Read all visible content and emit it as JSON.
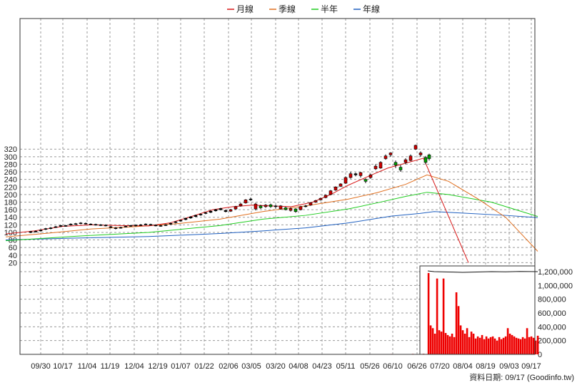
{
  "chart_data": {
    "type": "candlestick",
    "legend": [
      {
        "name": "月線",
        "color": "#d81818"
      },
      {
        "name": "季線",
        "color": "#e07020"
      },
      {
        "name": "半年",
        "color": "#20cc20"
      },
      {
        "name": "年線",
        "color": "#2060c0"
      }
    ],
    "x_labels": [
      "09/30",
      "10/17",
      "11/04",
      "11/19",
      "12/04",
      "12/19",
      "01/07",
      "01/22",
      "02/06",
      "03/05",
      "03/20",
      "04/08",
      "04/23",
      "05/11",
      "05/26",
      "06/10",
      "06/26",
      "07/20",
      "08/04",
      "08/19",
      "09/03",
      "09/17"
    ],
    "price_axis": {
      "ticks": [
        20,
        40,
        60,
        80,
        100,
        120,
        140,
        160,
        180,
        200,
        220,
        240,
        260,
        280,
        300,
        320
      ],
      "min": 0,
      "max": 330
    },
    "volume_axis": {
      "ticks": [
        "0",
        "200,000",
        "400,000",
        "600,000",
        "800,000",
        "1,000,000",
        "1,200,000"
      ],
      "min": 0,
      "max": 1200000
    },
    "ma_month": [
      [
        0,
        96
      ],
      [
        40,
        104
      ],
      [
        80,
        116
      ],
      [
        120,
        120
      ],
      [
        160,
        118
      ],
      [
        200,
        117
      ],
      [
        230,
        125
      ],
      [
        260,
        142
      ],
      [
        290,
        160
      ],
      [
        318,
        168
      ],
      [
        345,
        172
      ],
      [
        370,
        170
      ],
      [
        400,
        168
      ],
      [
        430,
        180
      ],
      [
        455,
        200
      ],
      [
        480,
        225
      ],
      [
        510,
        250
      ],
      [
        535,
        270
      ],
      [
        560,
        283
      ],
      [
        585,
        296
      ],
      [
        648,
        20
      ]
    ],
    "ma_season": [
      [
        0,
        88
      ],
      [
        60,
        98
      ],
      [
        120,
        109
      ],
      [
        180,
        115
      ],
      [
        240,
        123
      ],
      [
        300,
        135
      ],
      [
        360,
        155
      ],
      [
        420,
        170
      ],
      [
        480,
        188
      ],
      [
        520,
        205
      ],
      [
        560,
        227
      ],
      [
        590,
        252
      ],
      [
        620,
        235
      ],
      [
        660,
        190
      ],
      [
        700,
        140
      ],
      [
        745,
        50
      ]
    ],
    "ma_half": [
      [
        0,
        78
      ],
      [
        100,
        90
      ],
      [
        200,
        100
      ],
      [
        300,
        118
      ],
      [
        360,
        135
      ],
      [
        420,
        145
      ],
      [
        480,
        162
      ],
      [
        520,
        178
      ],
      [
        560,
        195
      ],
      [
        590,
        206
      ],
      [
        620,
        200
      ],
      [
        680,
        180
      ],
      [
        745,
        142
      ]
    ],
    "ma_year": [
      [
        0,
        80
      ],
      [
        100,
        85
      ],
      [
        200,
        89
      ],
      [
        300,
        97
      ],
      [
        360,
        104
      ],
      [
        420,
        112
      ],
      [
        480,
        125
      ],
      [
        540,
        143
      ],
      [
        580,
        150
      ],
      [
        600,
        155
      ],
      [
        640,
        151
      ],
      [
        700,
        145
      ],
      [
        745,
        139
      ]
    ],
    "candles": [
      {
        "x": 35,
        "o": 100,
        "c": 102,
        "h": 104,
        "l": 98
      },
      {
        "x": 42,
        "o": 102,
        "c": 103,
        "h": 105,
        "l": 100
      },
      {
        "x": 49,
        "o": 104,
        "c": 106,
        "h": 108,
        "l": 102
      },
      {
        "x": 56,
        "o": 108,
        "c": 110,
        "h": 112,
        "l": 106
      },
      {
        "x": 63,
        "o": 110,
        "c": 112,
        "h": 114,
        "l": 108
      },
      {
        "x": 70,
        "o": 114,
        "c": 115,
        "h": 117,
        "l": 112
      },
      {
        "x": 77,
        "o": 116,
        "c": 118,
        "h": 120,
        "l": 114
      },
      {
        "x": 84,
        "o": 118,
        "c": 117,
        "h": 120,
        "l": 115
      },
      {
        "x": 91,
        "o": 120,
        "c": 122,
        "h": 124,
        "l": 118
      },
      {
        "x": 98,
        "o": 122,
        "c": 123,
        "h": 125,
        "l": 120
      },
      {
        "x": 105,
        "o": 124,
        "c": 125,
        "h": 127,
        "l": 122
      },
      {
        "x": 112,
        "o": 124,
        "c": 123,
        "h": 126,
        "l": 121
      },
      {
        "x": 119,
        "o": 122,
        "c": 121,
        "h": 124,
        "l": 119
      },
      {
        "x": 126,
        "o": 120,
        "c": 121,
        "h": 123,
        "l": 118
      },
      {
        "x": 133,
        "o": 120,
        "c": 119,
        "h": 122,
        "l": 117
      },
      {
        "x": 140,
        "o": 118,
        "c": 119,
        "h": 121,
        "l": 116
      },
      {
        "x": 147,
        "o": 115,
        "c": 113,
        "h": 117,
        "l": 111
      },
      {
        "x": 154,
        "o": 112,
        "c": 110,
        "h": 114,
        "l": 108
      },
      {
        "x": 161,
        "o": 112,
        "c": 113,
        "h": 115,
        "l": 110
      },
      {
        "x": 168,
        "o": 115,
        "c": 116,
        "h": 118,
        "l": 113
      },
      {
        "x": 175,
        "o": 117,
        "c": 118,
        "h": 120,
        "l": 115
      },
      {
        "x": 182,
        "o": 118,
        "c": 119,
        "h": 121,
        "l": 116
      },
      {
        "x": 189,
        "o": 119,
        "c": 120,
        "h": 122,
        "l": 117
      },
      {
        "x": 196,
        "o": 122,
        "c": 121,
        "h": 124,
        "l": 119
      },
      {
        "x": 203,
        "o": 120,
        "c": 121,
        "h": 123,
        "l": 118
      },
      {
        "x": 210,
        "o": 118,
        "c": 119,
        "h": 121,
        "l": 116
      },
      {
        "x": 217,
        "o": 117,
        "c": 118,
        "h": 120,
        "l": 115
      },
      {
        "x": 224,
        "o": 119,
        "c": 120,
        "h": 122,
        "l": 117
      },
      {
        "x": 231,
        "o": 122,
        "c": 124,
        "h": 126,
        "l": 120
      },
      {
        "x": 238,
        "o": 126,
        "c": 128,
        "h": 130,
        "l": 124
      },
      {
        "x": 245,
        "o": 130,
        "c": 132,
        "h": 134,
        "l": 128
      },
      {
        "x": 252,
        "o": 134,
        "c": 137,
        "h": 139,
        "l": 132
      },
      {
        "x": 259,
        "o": 138,
        "c": 141,
        "h": 143,
        "l": 136
      },
      {
        "x": 266,
        "o": 142,
        "c": 145,
        "h": 147,
        "l": 140
      },
      {
        "x": 273,
        "o": 146,
        "c": 148,
        "h": 150,
        "l": 144
      },
      {
        "x": 280,
        "o": 150,
        "c": 152,
        "h": 154,
        "l": 148
      },
      {
        "x": 287,
        "o": 153,
        "c": 156,
        "h": 158,
        "l": 151
      },
      {
        "x": 294,
        "o": 157,
        "c": 160,
        "h": 162,
        "l": 155
      },
      {
        "x": 301,
        "o": 160,
        "c": 163,
        "h": 165,
        "l": 158
      },
      {
        "x": 308,
        "o": 158,
        "c": 155,
        "h": 160,
        "l": 153
      },
      {
        "x": 315,
        "o": 156,
        "c": 160,
        "h": 162,
        "l": 154
      },
      {
        "x": 322,
        "o": 162,
        "c": 168,
        "h": 170,
        "l": 160
      },
      {
        "x": 329,
        "o": 170,
        "c": 175,
        "h": 178,
        "l": 168
      },
      {
        "x": 336,
        "o": 178,
        "c": 186,
        "h": 188,
        "l": 176
      },
      {
        "x": 343,
        "o": 188,
        "c": 186,
        "h": 192,
        "l": 183
      },
      {
        "x": 350,
        "o": 162,
        "c": 175,
        "h": 178,
        "l": 158
      },
      {
        "x": 357,
        "o": 170,
        "c": 165,
        "h": 173,
        "l": 162
      },
      {
        "x": 364,
        "o": 168,
        "c": 172,
        "h": 175,
        "l": 165
      },
      {
        "x": 371,
        "o": 173,
        "c": 168,
        "h": 176,
        "l": 165
      },
      {
        "x": 378,
        "o": 168,
        "c": 170,
        "h": 173,
        "l": 163
      },
      {
        "x": 385,
        "o": 162,
        "c": 170,
        "h": 172,
        "l": 160
      },
      {
        "x": 392,
        "o": 165,
        "c": 160,
        "h": 168,
        "l": 158
      },
      {
        "x": 399,
        "o": 158,
        "c": 163,
        "h": 166,
        "l": 155
      },
      {
        "x": 406,
        "o": 162,
        "c": 155,
        "h": 164,
        "l": 152
      },
      {
        "x": 413,
        "o": 160,
        "c": 168,
        "h": 170,
        "l": 158
      },
      {
        "x": 420,
        "o": 168,
        "c": 170,
        "h": 173,
        "l": 166
      },
      {
        "x": 427,
        "o": 172,
        "c": 178,
        "h": 180,
        "l": 170
      },
      {
        "x": 434,
        "o": 180,
        "c": 184,
        "h": 186,
        "l": 178
      },
      {
        "x": 441,
        "o": 186,
        "c": 190,
        "h": 192,
        "l": 184
      },
      {
        "x": 448,
        "o": 192,
        "c": 198,
        "h": 200,
        "l": 190
      },
      {
        "x": 455,
        "o": 200,
        "c": 210,
        "h": 212,
        "l": 198
      },
      {
        "x": 462,
        "o": 212,
        "c": 220,
        "h": 222,
        "l": 210
      },
      {
        "x": 469,
        "o": 222,
        "c": 228,
        "h": 230,
        "l": 220
      },
      {
        "x": 476,
        "o": 230,
        "c": 245,
        "h": 248,
        "l": 228
      },
      {
        "x": 483,
        "o": 245,
        "c": 255,
        "h": 260,
        "l": 242
      },
      {
        "x": 490,
        "o": 255,
        "c": 252,
        "h": 258,
        "l": 248
      },
      {
        "x": 497,
        "o": 250,
        "c": 258,
        "h": 260,
        "l": 245
      },
      {
        "x": 504,
        "o": 240,
        "c": 235,
        "h": 243,
        "l": 230
      },
      {
        "x": 511,
        "o": 245,
        "c": 252,
        "h": 255,
        "l": 242
      },
      {
        "x": 518,
        "o": 268,
        "c": 275,
        "h": 280,
        "l": 265
      },
      {
        "x": 525,
        "o": 270,
        "c": 285,
        "h": 288,
        "l": 268
      },
      {
        "x": 532,
        "o": 295,
        "c": 302,
        "h": 306,
        "l": 292
      },
      {
        "x": 539,
        "o": 305,
        "c": 310,
        "h": 312,
        "l": 300
      },
      {
        "x": 546,
        "o": 285,
        "c": 278,
        "h": 290,
        "l": 270
      },
      {
        "x": 553,
        "o": 272,
        "c": 265,
        "h": 278,
        "l": 260
      },
      {
        "x": 560,
        "o": 285,
        "c": 292,
        "h": 296,
        "l": 280
      },
      {
        "x": 567,
        "o": 290,
        "c": 302,
        "h": 306,
        "l": 288
      },
      {
        "x": 574,
        "o": 320,
        "c": 330,
        "h": 332,
        "l": 318
      },
      {
        "x": 581,
        "o": 305,
        "c": 310,
        "h": 314,
        "l": 300
      },
      {
        "x": 588,
        "o": 298,
        "c": 285,
        "h": 302,
        "l": 280
      },
      {
        "x": 593,
        "o": 305,
        "c": 295,
        "h": 308,
        "l": 290
      }
    ],
    "volume": [
      {
        "x": 30,
        "v": 1000
      },
      {
        "x": 60,
        "v": 1200
      },
      {
        "x": 90,
        "v": 800
      },
      {
        "x": 120,
        "v": 1000
      },
      {
        "x": 150,
        "v": 900
      },
      {
        "x": 180,
        "v": 1100
      },
      {
        "x": 210,
        "v": 900
      },
      {
        "x": 240,
        "v": 1500
      },
      {
        "x": 270,
        "v": 1800
      },
      {
        "x": 300,
        "v": 2000
      },
      {
        "x": 330,
        "v": 2500
      },
      {
        "x": 360,
        "v": 2200
      },
      {
        "x": 390,
        "v": 2600
      },
      {
        "x": 420,
        "v": 3000
      },
      {
        "x": 450,
        "v": 3500
      },
      {
        "x": 480,
        "v": 4000
      },
      {
        "x": 510,
        "v": 5000
      },
      {
        "x": 540,
        "v": 6000
      },
      {
        "x": 570,
        "v": 7000
      },
      {
        "x": 585,
        "v": 8000
      },
      {
        "x": 592,
        "v": 1180000
      },
      {
        "x": 595,
        "v": 420000
      },
      {
        "x": 598,
        "v": 380000
      },
      {
        "x": 601,
        "v": 300000
      },
      {
        "x": 604,
        "v": 1100000
      },
      {
        "x": 607,
        "v": 350000
      },
      {
        "x": 610,
        "v": 330000
      },
      {
        "x": 613,
        "v": 1100000
      },
      {
        "x": 616,
        "v": 310000
      },
      {
        "x": 619,
        "v": 280000
      },
      {
        "x": 622,
        "v": 260000
      },
      {
        "x": 625,
        "v": 300000
      },
      {
        "x": 628,
        "v": 250000
      },
      {
        "x": 631,
        "v": 900000
      },
      {
        "x": 634,
        "v": 700000
      },
      {
        "x": 637,
        "v": 420000
      },
      {
        "x": 640,
        "v": 350000
      },
      {
        "x": 643,
        "v": 300000
      },
      {
        "x": 646,
        "v": 380000
      },
      {
        "x": 649,
        "v": 250000
      },
      {
        "x": 652,
        "v": 330000
      },
      {
        "x": 655,
        "v": 300000
      },
      {
        "x": 658,
        "v": 230000
      },
      {
        "x": 661,
        "v": 260000
      },
      {
        "x": 664,
        "v": 240000
      },
      {
        "x": 667,
        "v": 280000
      },
      {
        "x": 670,
        "v": 220000
      },
      {
        "x": 673,
        "v": 260000
      },
      {
        "x": 676,
        "v": 230000
      },
      {
        "x": 679,
        "v": 250000
      },
      {
        "x": 682,
        "v": 260000
      },
      {
        "x": 685,
        "v": 230000
      },
      {
        "x": 688,
        "v": 200000
      },
      {
        "x": 691,
        "v": 250000
      },
      {
        "x": 694,
        "v": 220000
      },
      {
        "x": 697,
        "v": 240000
      },
      {
        "x": 700,
        "v": 260000
      },
      {
        "x": 703,
        "v": 380000
      },
      {
        "x": 706,
        "v": 300000
      },
      {
        "x": 709,
        "v": 280000
      },
      {
        "x": 712,
        "v": 260000
      },
      {
        "x": 715,
        "v": 240000
      },
      {
        "x": 718,
        "v": 230000
      },
      {
        "x": 721,
        "v": 220000
      },
      {
        "x": 724,
        "v": 250000
      },
      {
        "x": 727,
        "v": 230000
      },
      {
        "x": 730,
        "v": 380000
      },
      {
        "x": 733,
        "v": 250000
      },
      {
        "x": 736,
        "v": 260000
      },
      {
        "x": 739,
        "v": 240000
      },
      {
        "x": 742,
        "v": 200000
      },
      {
        "x": 745,
        "v": 270000
      }
    ],
    "volume_price_line": [
      [
        591,
        1210000
      ],
      [
        600,
        1200000
      ],
      [
        620,
        1195000
      ],
      [
        640,
        1190000
      ],
      [
        660,
        1195000
      ],
      [
        680,
        1200000
      ],
      [
        700,
        1198000
      ],
      [
        720,
        1202000
      ],
      [
        745,
        1200000
      ]
    ],
    "source_label": "資料日期: 09/17  (Goodinfo.tw)"
  }
}
